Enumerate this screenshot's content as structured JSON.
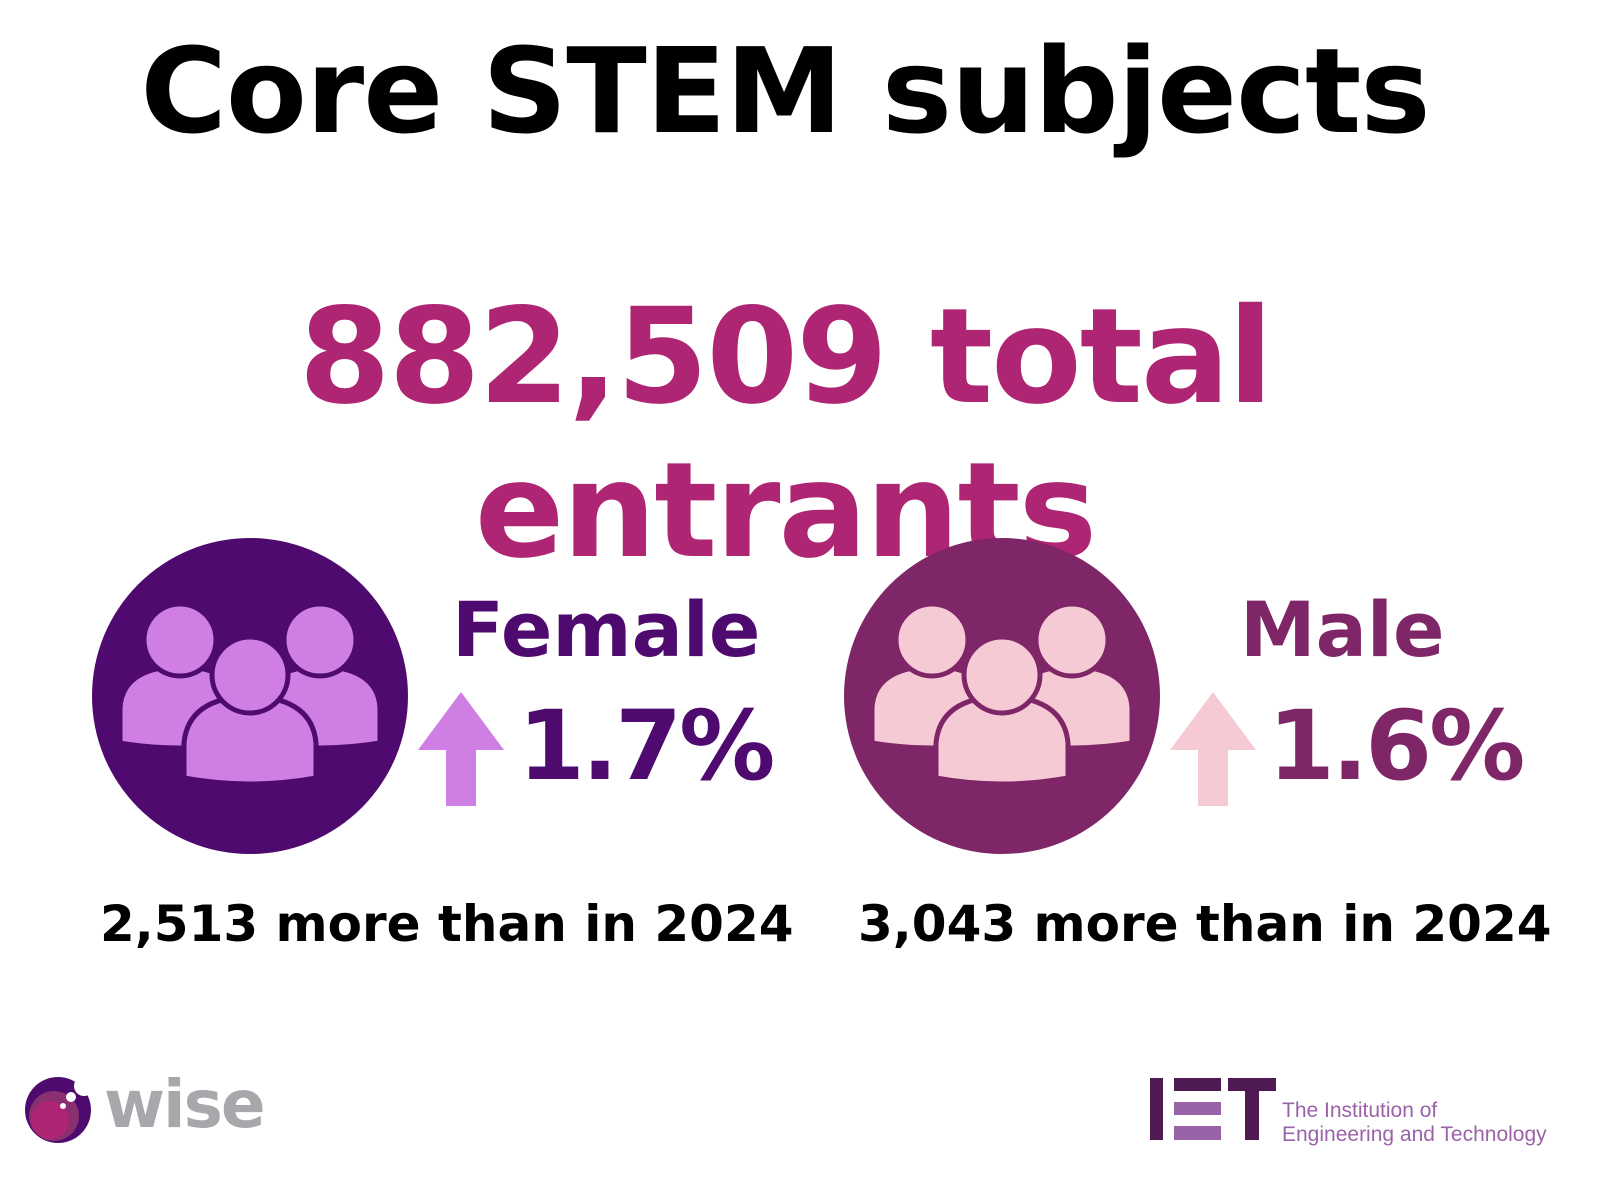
{
  "title": "Core STEM subjects",
  "total": "882,509 total entrants",
  "colors": {
    "title": "#000000",
    "total": "#ae2573",
    "female_circle": "#4e0a6e",
    "female_icon": "#cf7fe3",
    "male_circle": "#7f2668",
    "male_icon": "#f6cad4"
  },
  "female": {
    "label": "Female",
    "change": "1.7%",
    "direction": "up",
    "arrow-icon": "arrow-up-icon",
    "more": "2,513 more than in 2024"
  },
  "male": {
    "label": "Male",
    "change": "1.6%",
    "direction": "up",
    "arrow-icon": "arrow-up-icon",
    "more": "3,043 more than in 2024"
  },
  "logos": {
    "wise": "wise",
    "iet_mark": "IET",
    "iet_line1": "The Institution of",
    "iet_line2": "Engineering and Technology"
  }
}
